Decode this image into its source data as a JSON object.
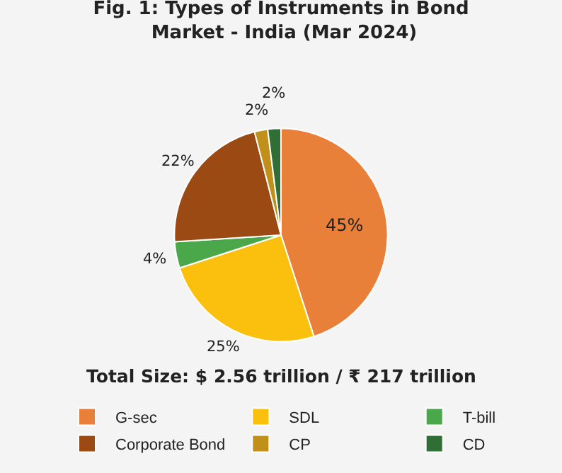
{
  "chart_data": {
    "type": "pie",
    "title": "Fig. 1: Types of Instruments in Bond Market - India (Mar 2024)",
    "categories": [
      "G-sec",
      "SDL",
      "T-bill",
      "Corporate Bond",
      "CP",
      "CD"
    ],
    "values": [
      45,
      25,
      4,
      22,
      2,
      2
    ],
    "value_labels": [
      "45%",
      "25%",
      "4%",
      "22%",
      "2%",
      "2%"
    ],
    "colors": [
      "#e8803a",
      "#fbbf0e",
      "#4aa84a",
      "#9a4a12",
      "#c0901a",
      "#2f6e35"
    ],
    "annotations": [
      "Total Size: $ 2.56 trillion / ₹ 217 trillion"
    ],
    "legend": "bottom"
  }
}
